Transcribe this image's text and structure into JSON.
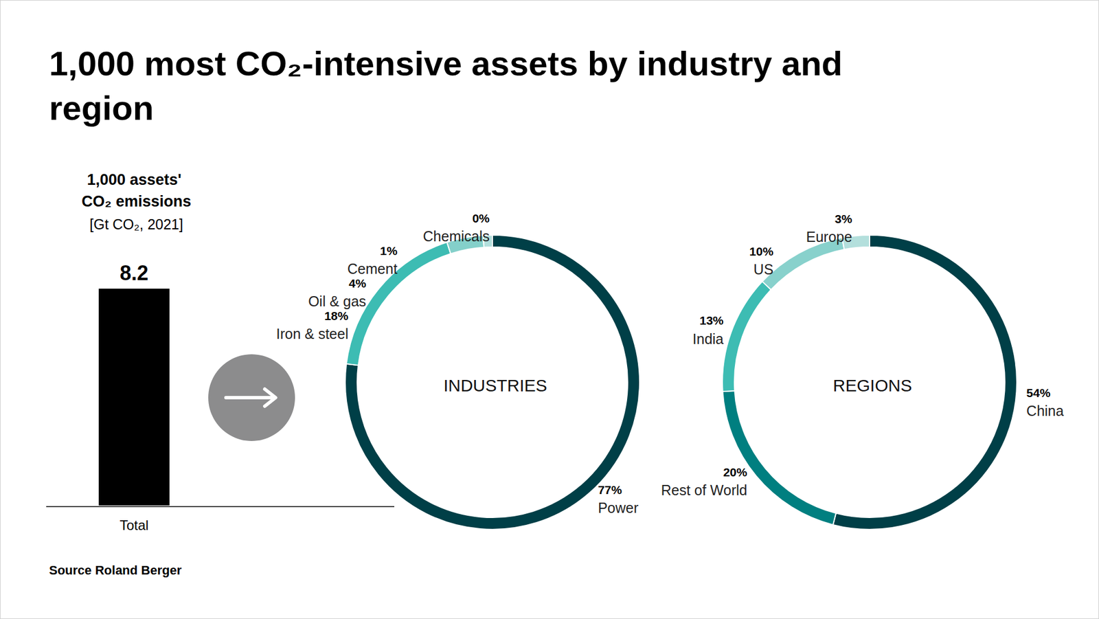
{
  "title": "1,000 most CO₂-intensive assets by industry and region",
  "source_label": "Source",
  "source": "Roland Berger",
  "chart_data": [
    {
      "type": "bar",
      "title": "1,000 assets' CO₂ emissions",
      "subtitle": "[Gt CO₂, 2021]",
      "categories": [
        "Total"
      ],
      "values": [
        8.2
      ],
      "color": "#000000",
      "ylim": [
        0,
        8.2
      ],
      "data_labels": true,
      "tick_labels": "x"
    },
    {
      "type": "pie",
      "title": "INDUSTRIES",
      "categories": [
        "Power",
        "Iron & steel",
        "Oil & gas",
        "Cement",
        "Chemicals"
      ],
      "values": [
        77,
        18,
        4,
        1,
        0
      ],
      "value_labels": [
        "77%",
        "18%",
        "4%",
        "1%",
        "0%"
      ],
      "colors": [
        "#003f47",
        "#3dbcb3",
        "#84d0ca",
        "#b3dfdc",
        "#c9e8e6"
      ],
      "data_labels": true
    },
    {
      "type": "pie",
      "title": "REGIONS",
      "categories": [
        "China",
        "Rest of World",
        "India",
        "US",
        "Europe"
      ],
      "values": [
        54,
        20,
        13,
        10,
        3
      ],
      "value_labels": [
        "54%",
        "20%",
        "13%",
        "10%",
        "3%"
      ],
      "colors": [
        "#003f47",
        "#007f80",
        "#3dbcb3",
        "#88d1cc",
        "#b3dfdc"
      ],
      "data_labels": true
    }
  ]
}
